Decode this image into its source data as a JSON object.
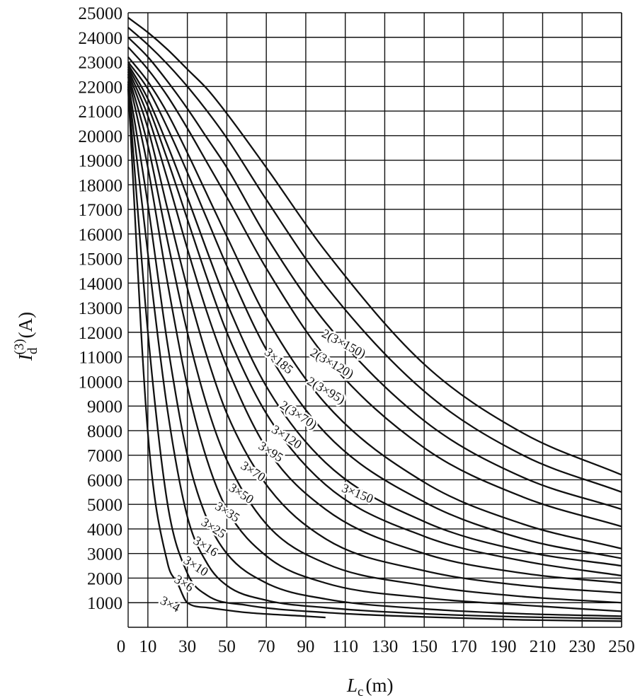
{
  "chart_data": {
    "type": "line",
    "xlabel": "L",
    "xlabel_sub": "c",
    "xlabel_unit": "(m)",
    "ylabel": "I",
    "ylabel_sub": "d",
    "ylabel_sup": "(3)",
    "ylabel_unit": "(A)",
    "xlim": [
      0,
      250
    ],
    "ylim": [
      0,
      25000
    ],
    "x_ticks": [
      "0",
      "10",
      "30",
      "50",
      "70",
      "90",
      "110",
      "130",
      "150",
      "170",
      "190",
      "210",
      "230",
      "250"
    ],
    "y_ticks": [
      "1000",
      "2000",
      "3000",
      "4000",
      "5000",
      "6000",
      "7000",
      "8000",
      "9000",
      "10000",
      "11000",
      "12000",
      "13000",
      "14000",
      "15000",
      "16000",
      "17000",
      "18000",
      "19000",
      "20000",
      "21000",
      "22000",
      "23000",
      "24000",
      "25000"
    ],
    "grid": true,
    "series": [
      {
        "name": "3×4",
        "x": [
          0,
          10,
          20,
          25,
          30,
          40,
          60,
          90,
          100
        ],
        "y": [
          21900,
          7900,
          2600,
          1800,
          1000,
          800,
          600,
          450,
          400
        ]
      },
      {
        "name": "3×6",
        "x": [
          0,
          10,
          20,
          30,
          40,
          60,
          100,
          150,
          200,
          250
        ],
        "y": [
          22000,
          12000,
          5000,
          2200,
          1300,
          900,
          600,
          420,
          300,
          250
        ]
      },
      {
        "name": "3×10",
        "x": [
          0,
          10,
          20,
          30,
          40,
          50,
          70,
          100,
          150,
          200,
          250
        ],
        "y": [
          22100,
          15200,
          8800,
          4500,
          2600,
          1700,
          1100,
          800,
          550,
          420,
          350
        ]
      },
      {
        "name": "3×16",
        "x": [
          0,
          10,
          20,
          30,
          40,
          50,
          70,
          100,
          150,
          200,
          250
        ],
        "y": [
          22200,
          17200,
          11500,
          7000,
          4400,
          3000,
          1800,
          1150,
          750,
          550,
          450
        ]
      },
      {
        "name": "3×25",
        "x": [
          0,
          10,
          20,
          30,
          40,
          50,
          70,
          100,
          150,
          200,
          250
        ],
        "y": [
          22400,
          18700,
          14000,
          9800,
          6800,
          4800,
          2900,
          1800,
          1200,
          900,
          650
        ]
      },
      {
        "name": "3×35",
        "x": [
          0,
          10,
          20,
          30,
          40,
          50,
          70,
          100,
          150,
          200,
          250
        ],
        "y": [
          22500,
          19600,
          15700,
          12000,
          9000,
          6800,
          4200,
          2600,
          1700,
          1250,
          1000
        ]
      },
      {
        "name": "3×50",
        "x": [
          0,
          10,
          20,
          30,
          40,
          50,
          70,
          100,
          150,
          200,
          250
        ],
        "y": [
          22600,
          20300,
          17000,
          13800,
          11000,
          8700,
          5800,
          3600,
          2300,
          1700,
          1400
        ]
      },
      {
        "name": "3×70",
        "x": [
          0,
          10,
          20,
          30,
          40,
          50,
          70,
          100,
          150,
          200,
          250
        ],
        "y": [
          22700,
          20800,
          18200,
          15400,
          12800,
          10600,
          7300,
          4800,
          3000,
          2200,
          1800
        ]
      },
      {
        "name": "3×95",
        "x": [
          0,
          10,
          20,
          30,
          40,
          50,
          70,
          100,
          150,
          200,
          250
        ],
        "y": [
          22800,
          21200,
          19000,
          16600,
          14200,
          12000,
          8700,
          5800,
          3700,
          2700,
          2100
        ]
      },
      {
        "name": "3×120",
        "x": [
          0,
          10,
          20,
          30,
          40,
          50,
          70,
          100,
          150,
          200,
          250
        ],
        "y": [
          22900,
          21500,
          19600,
          17500,
          15300,
          13200,
          9800,
          6700,
          4300,
          3100,
          2500
        ]
      },
      {
        "name": "3×150",
        "x": [
          0,
          10,
          20,
          30,
          40,
          50,
          70,
          100,
          150,
          200,
          250
        ],
        "y": [
          23000,
          21900,
          20300,
          18500,
          16600,
          14700,
          11300,
          7900,
          5100,
          3600,
          2800
        ]
      },
      {
        "name": "3×185",
        "x": [
          0,
          10,
          20,
          30,
          40,
          50,
          70,
          100,
          150,
          200,
          250
        ],
        "y": [
          23200,
          22200,
          20900,
          19300,
          17600,
          15900,
          12600,
          9100,
          5900,
          4200,
          3200
        ]
      },
      {
        "name": "2(3×70)",
        "x": [
          0,
          10,
          20,
          30,
          40,
          50,
          70,
          100,
          150,
          200,
          250
        ],
        "y": [
          23600,
          22700,
          21600,
          20300,
          18900,
          17500,
          14600,
          11000,
          7300,
          5300,
          4100
        ]
      },
      {
        "name": "2(3×95)",
        "x": [
          0,
          10,
          20,
          30,
          40,
          50,
          70,
          100,
          150,
          200,
          250
        ],
        "y": [
          24000,
          23200,
          22200,
          21100,
          19900,
          18700,
          15900,
          12400,
          8400,
          6100,
          4800
        ]
      },
      {
        "name": "2(3×120)",
        "x": [
          0,
          10,
          20,
          30,
          40,
          50,
          70,
          100,
          150,
          200,
          250
        ],
        "y": [
          24400,
          23700,
          22900,
          22000,
          21000,
          19900,
          17400,
          13900,
          9600,
          7000,
          5500
        ]
      },
      {
        "name": "2(3×150)",
        "x": [
          0,
          10,
          20,
          30,
          40,
          50,
          70,
          100,
          150,
          200,
          250
        ],
        "y": [
          24800,
          24200,
          23500,
          22700,
          21900,
          20900,
          18700,
          15300,
          10700,
          7900,
          6200
        ]
      }
    ],
    "curve_labels": [
      {
        "text": "3×4",
        "x": 21,
        "y": 900,
        "angle": 28
      },
      {
        "text": "3×6",
        "x": 28,
        "y": 1750,
        "angle": 32
      },
      {
        "text": "3×10",
        "x": 34,
        "y": 2450,
        "angle": 33
      },
      {
        "text": "3×16",
        "x": 39,
        "y": 3250,
        "angle": 33
      },
      {
        "text": "3×25",
        "x": 43,
        "y": 4000,
        "angle": 33
      },
      {
        "text": "3×35",
        "x": 50,
        "y": 4650,
        "angle": 33
      },
      {
        "text": "3×50",
        "x": 57,
        "y": 5400,
        "angle": 33
      },
      {
        "text": "3×70",
        "x": 63,
        "y": 6300,
        "angle": 33
      },
      {
        "text": "3×95",
        "x": 72,
        "y": 7100,
        "angle": 33
      },
      {
        "text": "3×120",
        "x": 80,
        "y": 7700,
        "angle": 33
      },
      {
        "text": "2(3×70)",
        "x": 86,
        "y": 8600,
        "angle": 33
      },
      {
        "text": "3×185",
        "x": 76,
        "y": 10800,
        "angle": 40
      },
      {
        "text": "2(3×95)",
        "x": 100,
        "y": 9600,
        "angle": 30
      },
      {
        "text": "2(3×120)",
        "x": 103,
        "y": 10700,
        "angle": 30
      },
      {
        "text": "2(3×150)",
        "x": 109,
        "y": 11500,
        "angle": 28
      },
      {
        "text": "3×150",
        "x": 116,
        "y": 5400,
        "angle": 22
      }
    ]
  }
}
